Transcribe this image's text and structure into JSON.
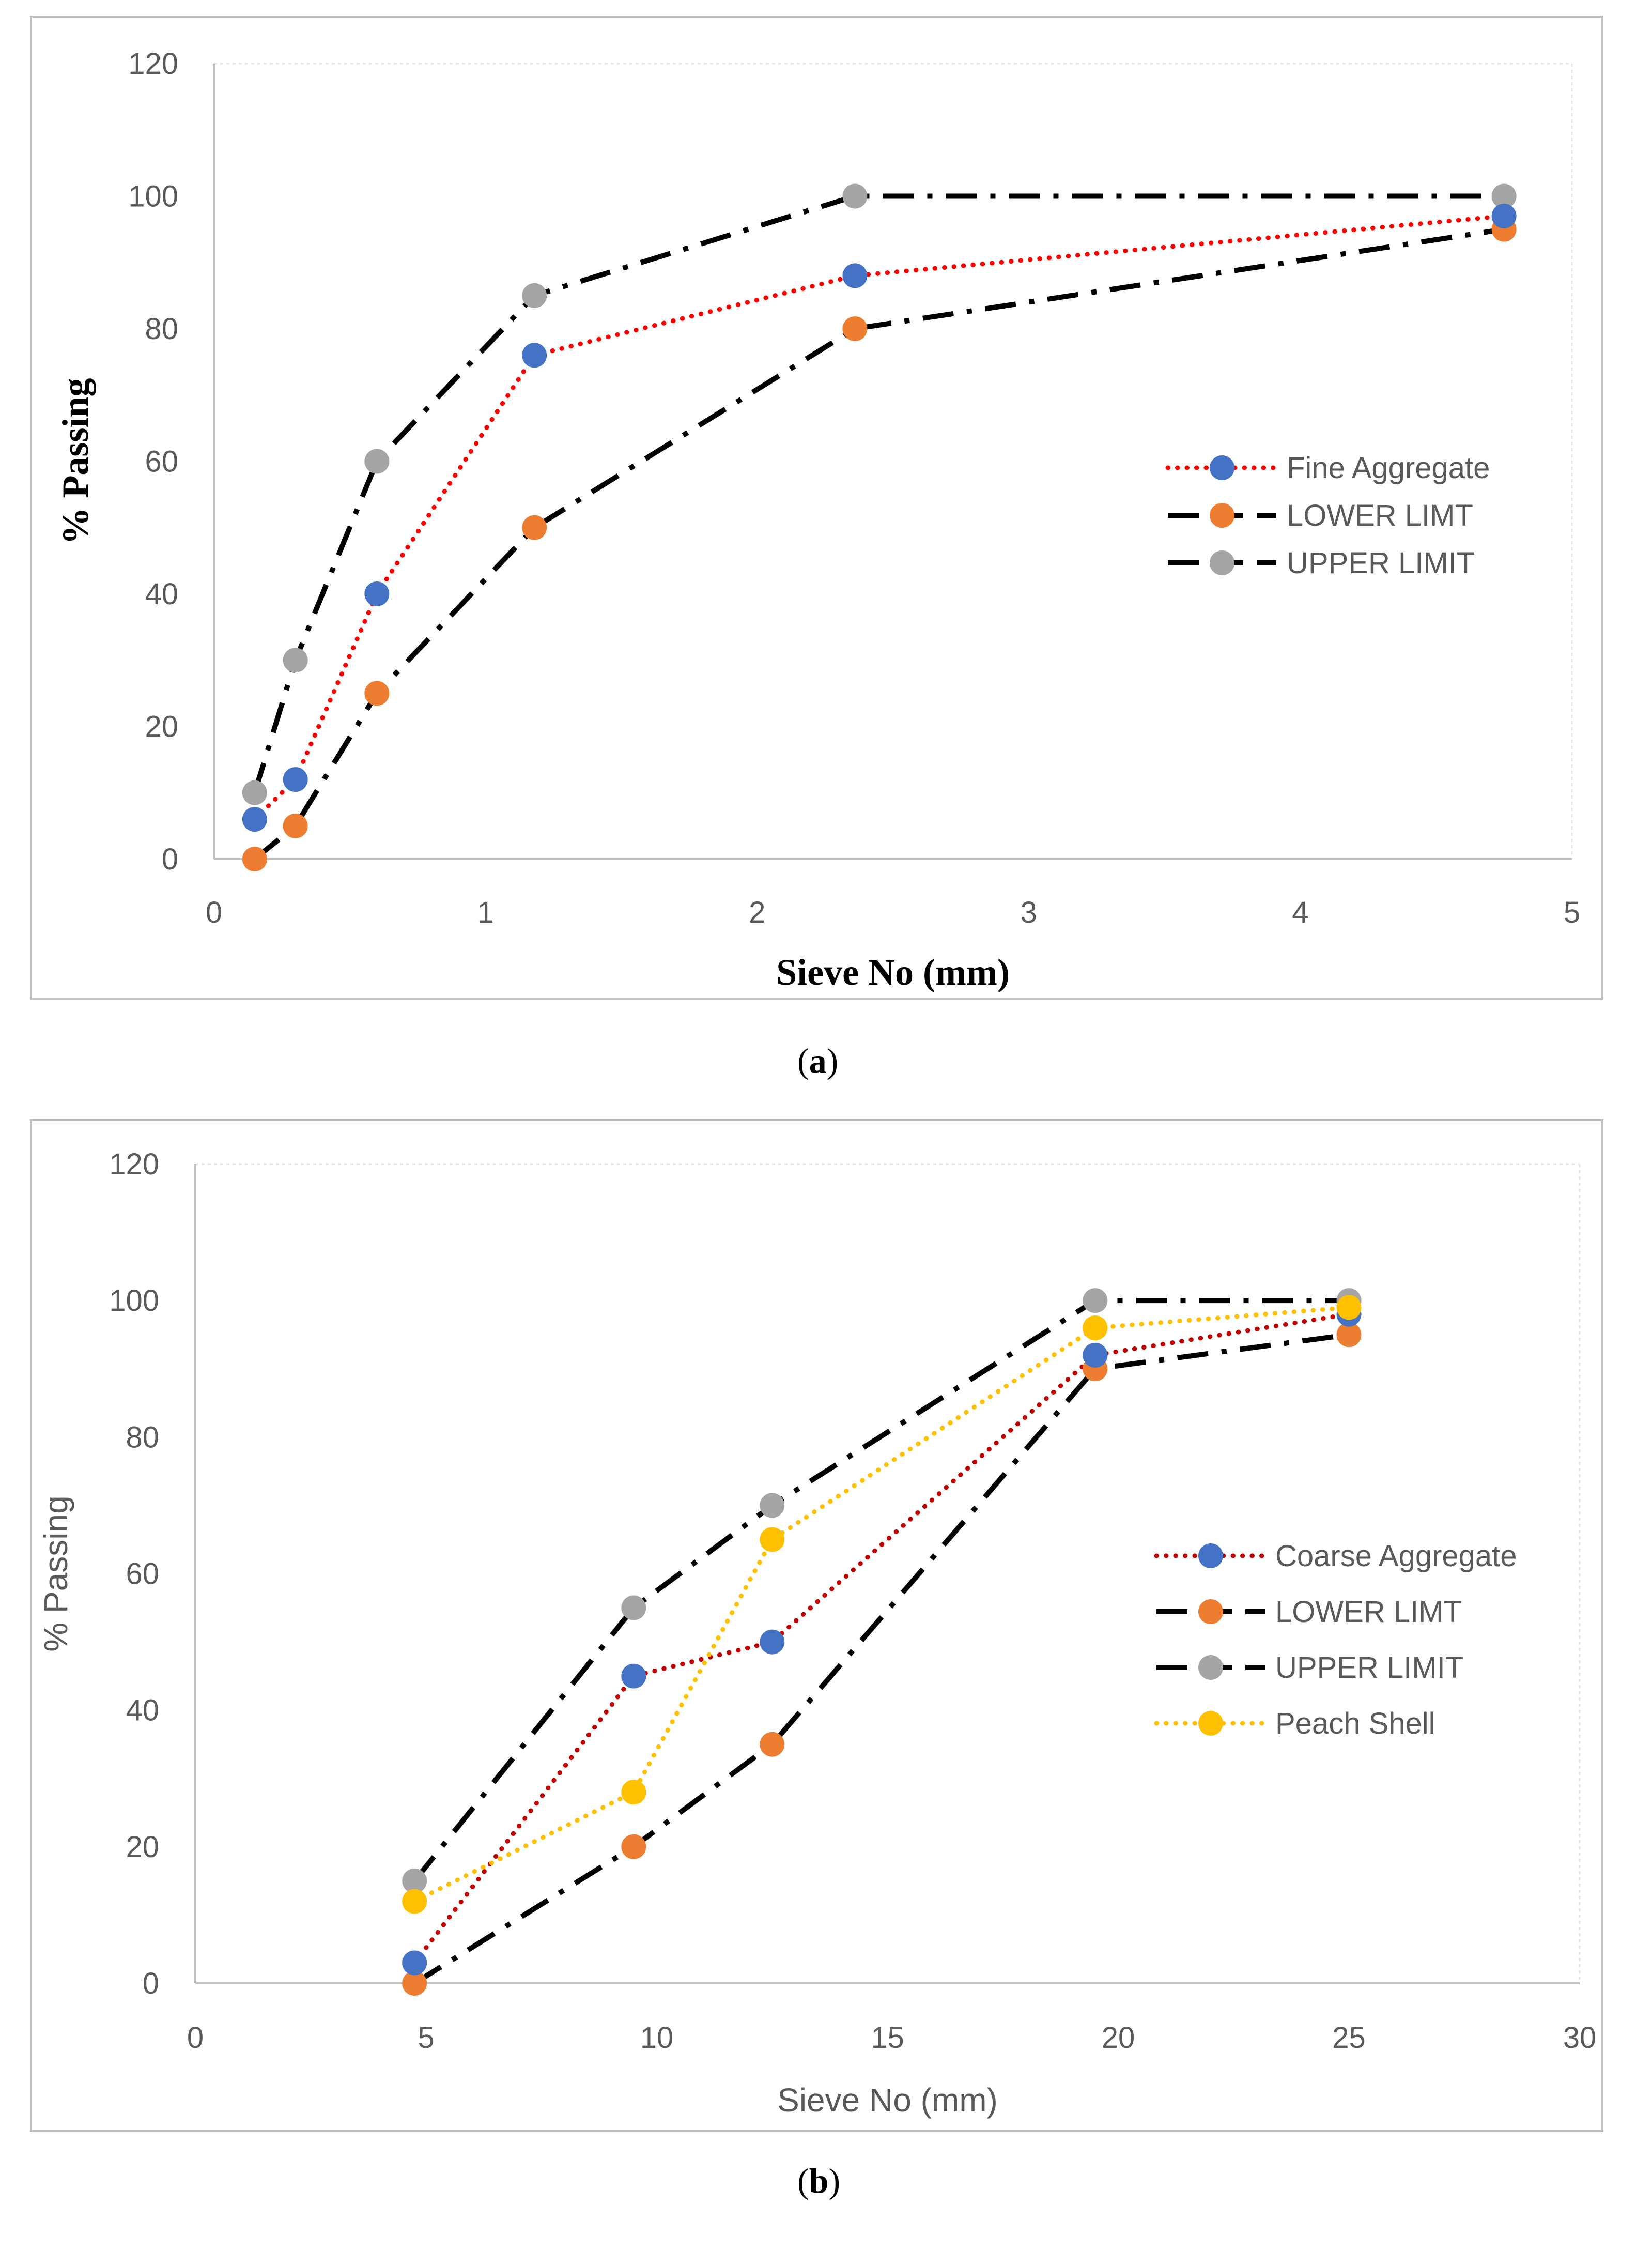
{
  "chart_data": [
    {
      "id": "a",
      "type": "line",
      "caption": "a",
      "xlabel": "Sieve No (mm)",
      "ylabel": "% Passing",
      "xlim": [
        0,
        5
      ],
      "ylim": [
        0,
        120
      ],
      "xticks": [
        0,
        1,
        2,
        3,
        4,
        5
      ],
      "yticks": [
        0,
        20,
        40,
        60,
        80,
        100,
        120
      ],
      "grid": false,
      "legend_position": "right-middle",
      "series": [
        {
          "name": "Fine Aggregate",
          "line_color": "#ff0000",
          "marker_color": "#4472c4",
          "dash": "dotted",
          "x": [
            0.15,
            0.3,
            0.6,
            1.18,
            2.36,
            4.75
          ],
          "y": [
            6,
            12,
            40,
            76,
            88,
            97
          ]
        },
        {
          "name": "LOWER LIMT",
          "line_color": "#000000",
          "marker_color": "#ed7d31",
          "dash": "dashdot",
          "x": [
            0.15,
            0.3,
            0.6,
            1.18,
            2.36,
            4.75
          ],
          "y": [
            0,
            5,
            25,
            50,
            80,
            95
          ]
        },
        {
          "name": "UPPER LIMIT",
          "line_color": "#000000",
          "marker_color": "#a5a5a5",
          "dash": "dashdot",
          "x": [
            0.15,
            0.3,
            0.6,
            1.18,
            2.36,
            4.75
          ],
          "y": [
            10,
            30,
            60,
            85,
            100,
            100
          ]
        }
      ]
    },
    {
      "id": "b",
      "type": "line",
      "caption": "b",
      "xlabel": "Sieve No (mm)",
      "ylabel": "% Passing",
      "xlim": [
        0,
        30
      ],
      "ylim": [
        0,
        120
      ],
      "xticks": [
        0,
        5,
        10,
        15,
        20,
        25,
        30
      ],
      "yticks": [
        0,
        20,
        40,
        60,
        80,
        100,
        120
      ],
      "grid": false,
      "legend_position": "right-middle",
      "series": [
        {
          "name": "Coarse Aggregate",
          "line_color": "#c00000",
          "marker_color": "#4472c4",
          "dash": "dotted",
          "x": [
            4.75,
            9.5,
            12.5,
            19.5,
            25
          ],
          "y": [
            3,
            45,
            50,
            92,
            98
          ]
        },
        {
          "name": "LOWER LIMT",
          "line_color": "#000000",
          "marker_color": "#ed7d31",
          "dash": "dashdot",
          "x": [
            4.75,
            9.5,
            12.5,
            19.5,
            25
          ],
          "y": [
            0,
            20,
            35,
            90,
            95
          ]
        },
        {
          "name": "UPPER LIMIT",
          "line_color": "#000000",
          "marker_color": "#a5a5a5",
          "dash": "dashdot",
          "x": [
            4.75,
            9.5,
            12.5,
            19.5,
            25
          ],
          "y": [
            15,
            55,
            70,
            100,
            100
          ]
        },
        {
          "name": "Peach Shell",
          "line_color": "#ffc000",
          "marker_color": "#ffc000",
          "dash": "dotted",
          "x": [
            4.75,
            9.5,
            12.5,
            19.5,
            25
          ],
          "y": [
            12,
            28,
            65,
            96,
            99
          ]
        }
      ]
    }
  ]
}
